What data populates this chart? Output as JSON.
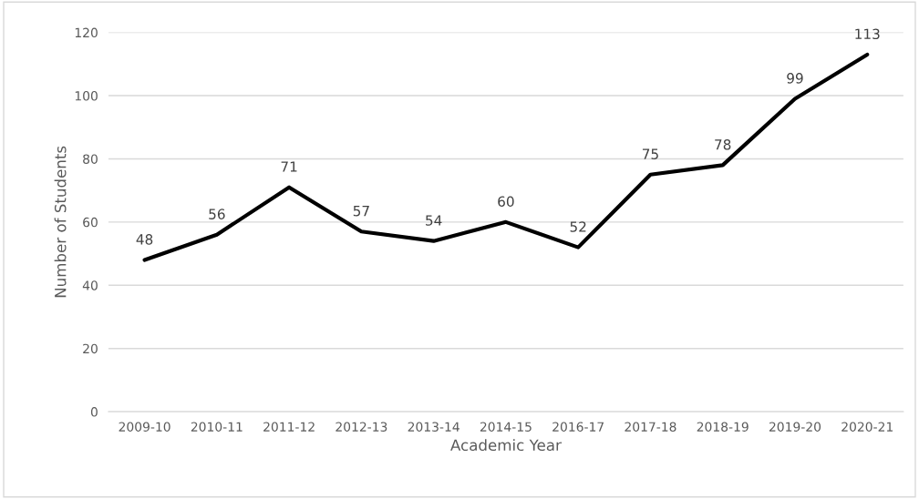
{
  "chart_data": {
    "type": "line",
    "xlabel": "Academic Year",
    "ylabel": "Number of Students",
    "categories": [
      "2009-10",
      "2010-11",
      "2011-12",
      "2012-13",
      "2013-14",
      "2014-15",
      "2016-17",
      "2017-18",
      "2018-19",
      "2019-20",
      "2020-21"
    ],
    "series": [
      {
        "color": "#000000",
        "values": [
          48,
          56,
          71,
          57,
          54,
          60,
          52,
          75,
          78,
          99,
          113
        ]
      }
    ],
    "ylim": [
      0,
      120
    ],
    "yticks": [
      0,
      20,
      40,
      60,
      80,
      100,
      120
    ],
    "grid": "y",
    "data_labels": true,
    "marker": "none",
    "line_style": "solid"
  }
}
